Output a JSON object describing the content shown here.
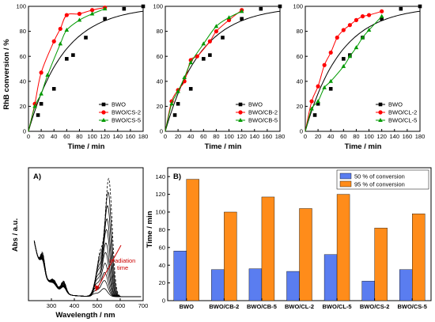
{
  "colors": {
    "bwo": "#000000",
    "cs2": "#ff0000",
    "cs5": "#009900",
    "bar50": "#5a7df0",
    "bar95": "#ff8c1a",
    "annot": "#cc0000"
  },
  "chart_data": [
    {
      "type": "line",
      "xlabel": "Time / min",
      "ylabel": "RhB conversion / %",
      "xlim": [
        0,
        180
      ],
      "ylim": [
        0,
        100
      ],
      "xticks": [
        "0",
        "20",
        "40",
        "60",
        "80",
        "100",
        "120",
        "140",
        "160",
        "180"
      ],
      "yticks": [
        "0",
        "20",
        "40",
        "60",
        "80",
        "100"
      ],
      "legend_position": "bottom-right",
      "series": [
        {
          "name": "BWO",
          "color": "#000000",
          "marker": "square",
          "smooth": "exp",
          "k": 0.018,
          "points": [
            [
              0,
              0
            ],
            [
              15,
              13
            ],
            [
              20,
              22
            ],
            [
              40,
              34
            ],
            [
              60,
              58
            ],
            [
              70,
              61
            ],
            [
              90,
              75
            ],
            [
              120,
              90
            ],
            [
              150,
              98
            ],
            [
              180,
              100
            ]
          ]
        },
        {
          "name": "BWO/CS-2",
          "color": "#ff0000",
          "marker": "circle",
          "points": [
            [
              0,
              0
            ],
            [
              10,
              22
            ],
            [
              20,
              47
            ],
            [
              40,
              72
            ],
            [
              50,
              82
            ],
            [
              60,
              93
            ],
            [
              80,
              94
            ],
            [
              100,
              97
            ],
            [
              120,
              99
            ]
          ]
        },
        {
          "name": "BWO/CS-5",
          "color": "#009900",
          "marker": "triangle",
          "points": [
            [
              0,
              0
            ],
            [
              10,
              20
            ],
            [
              20,
              30
            ],
            [
              30,
              45
            ],
            [
              50,
              70
            ],
            [
              60,
              81
            ],
            [
              80,
              89
            ],
            [
              100,
              94
            ],
            [
              120,
              98
            ]
          ]
        }
      ]
    },
    {
      "type": "line",
      "xlabel": "Time / min",
      "ylabel": "",
      "xlim": [
        0,
        180
      ],
      "ylim": [
        0,
        100
      ],
      "xticks": [
        "0",
        "20",
        "40",
        "60",
        "80",
        "100",
        "120",
        "140",
        "160",
        "180"
      ],
      "yticks": [
        "0",
        "20",
        "40",
        "60",
        "80",
        "100"
      ],
      "legend_position": "bottom-right",
      "series": [
        {
          "name": "BWO",
          "color": "#000000",
          "marker": "square",
          "smooth": "exp",
          "k": 0.018,
          "points": [
            [
              0,
              0
            ],
            [
              15,
              13
            ],
            [
              20,
              22
            ],
            [
              40,
              34
            ],
            [
              60,
              58
            ],
            [
              70,
              61
            ],
            [
              90,
              75
            ],
            [
              120,
              90
            ],
            [
              150,
              98
            ],
            [
              180,
              100
            ]
          ]
        },
        {
          "name": "BWO/CB-2",
          "color": "#ff0000",
          "marker": "circle",
          "points": [
            [
              0,
              0
            ],
            [
              10,
              24
            ],
            [
              20,
              33
            ],
            [
              30,
              40
            ],
            [
              40,
              57
            ],
            [
              50,
              60
            ],
            [
              70,
              72
            ],
            [
              80,
              80
            ],
            [
              100,
              89
            ],
            [
              120,
              97
            ]
          ]
        },
        {
          "name": "BWO/CB-5",
          "color": "#009900",
          "marker": "triangle",
          "points": [
            [
              0,
              0
            ],
            [
              10,
              22
            ],
            [
              20,
              32
            ],
            [
              30,
              43
            ],
            [
              40,
              55
            ],
            [
              60,
              70
            ],
            [
              80,
              84
            ],
            [
              100,
              91
            ],
            [
              120,
              96
            ]
          ]
        }
      ]
    },
    {
      "type": "line",
      "xlabel": "Time / min",
      "ylabel": "",
      "xlim": [
        0,
        180
      ],
      "ylim": [
        0,
        100
      ],
      "xticks": [
        "0",
        "20",
        "40",
        "60",
        "80",
        "100",
        "120",
        "140",
        "160",
        "180"
      ],
      "yticks": [
        "0",
        "20",
        "40",
        "60",
        "80",
        "100"
      ],
      "legend_position": "bottom-right",
      "series": [
        {
          "name": "BWO",
          "color": "#000000",
          "marker": "square",
          "smooth": "exp",
          "k": 0.018,
          "points": [
            [
              0,
              0
            ],
            [
              15,
              13
            ],
            [
              20,
              22
            ],
            [
              40,
              34
            ],
            [
              60,
              58
            ],
            [
              70,
              61
            ],
            [
              90,
              75
            ],
            [
              120,
              90
            ],
            [
              150,
              98
            ],
            [
              180,
              100
            ]
          ]
        },
        {
          "name": "BWO/CL-2",
          "color": "#ff0000",
          "marker": "circle",
          "points": [
            [
              0,
              0
            ],
            [
              10,
              24
            ],
            [
              20,
              36
            ],
            [
              30,
              53
            ],
            [
              40,
              63
            ],
            [
              50,
              75
            ],
            [
              60,
              81
            ],
            [
              70,
              85
            ],
            [
              80,
              89
            ],
            [
              90,
              92
            ],
            [
              100,
              93
            ],
            [
              120,
              96
            ]
          ]
        },
        {
          "name": "BWO/CL-5",
          "color": "#009900",
          "marker": "triangle",
          "points": [
            [
              0,
              0
            ],
            [
              10,
              18
            ],
            [
              20,
              24
            ],
            [
              30,
              35
            ],
            [
              40,
              40
            ],
            [
              60,
              52
            ],
            [
              70,
              60
            ],
            [
              80,
              67
            ],
            [
              90,
              75
            ],
            [
              100,
              81
            ],
            [
              120,
              92
            ]
          ]
        }
      ]
    },
    {
      "type": "line",
      "panel_label": "A)",
      "xlabel": "Wavelength / nm",
      "ylabel": "Abs / a.u.",
      "xlim": [
        200,
        700
      ],
      "ylim": [
        0,
        1
      ],
      "xticks": [
        "300",
        "400",
        "500",
        "600",
        "700"
      ],
      "annotation": {
        "text_lines": [
          "Irradiation",
          "time"
        ],
        "color": "#cc0000"
      },
      "series_amplitudes": [
        0.88,
        0.78,
        0.68,
        0.58,
        0.5,
        0.4,
        0.33,
        0.25,
        0.18,
        0.12,
        0.06
      ]
    },
    {
      "type": "bar",
      "panel_label": "B)",
      "xlabel": "",
      "ylabel": "Time / min",
      "ylim": [
        0,
        150
      ],
      "yticks": [
        "0",
        "20",
        "40",
        "60",
        "80",
        "100",
        "120",
        "140"
      ],
      "categories": [
        "BWO",
        "BWO/CB-2",
        "BWO/CB-5",
        "BWO/CL-2",
        "BWO/CL-5",
        "BWO/CS-2",
        "BWO/CS-5"
      ],
      "legend_position": "top-right",
      "series": [
        {
          "name": "50 % of conversion",
          "color": "#5a7df0",
          "values": [
            56,
            35,
            36,
            33,
            52,
            22,
            35
          ]
        },
        {
          "name": "95 % of conversion",
          "color": "#ff8c1a",
          "values": [
            137,
            100,
            117,
            104,
            120,
            82,
            98
          ]
        }
      ]
    }
  ]
}
